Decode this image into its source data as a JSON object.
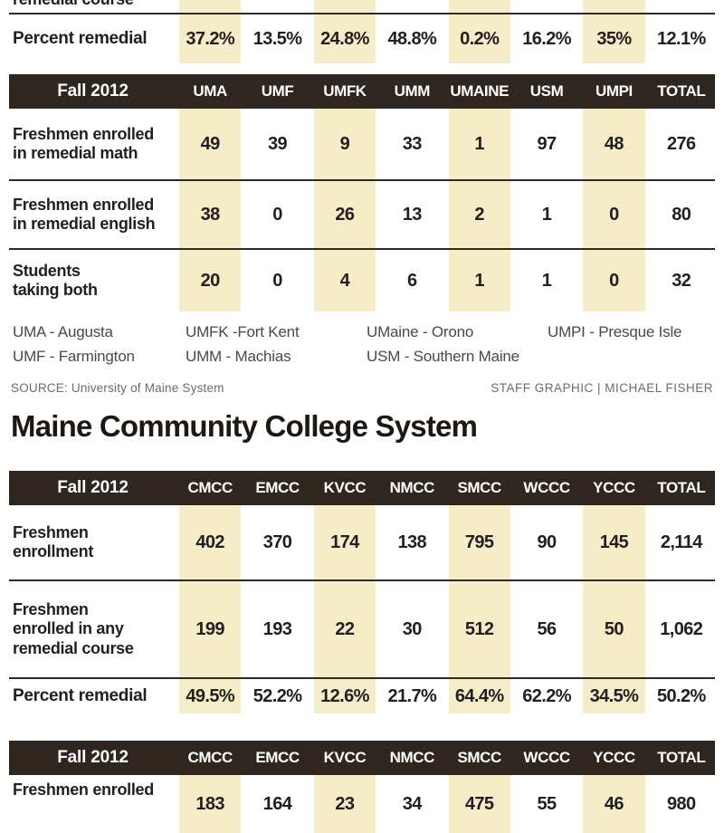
{
  "colors": {
    "page_bg": "#ffffff",
    "header_bg": "#2f2620",
    "header_text": "#ffffff",
    "stripe": "#f5ecc8",
    "rule": "#2e2a26",
    "body_text": "#231f20",
    "muted_text": "#6e6a66",
    "legend_text": "#4c4845"
  },
  "section_title": "Maine Community College System",
  "legend": {
    "col1": "UMA - Augusta\nUMF - Farmington",
    "col2": "UMFK -Fort Kent\nUMM - Machias",
    "col3": "UMaine - Orono\nUSM - Southern Maine",
    "col4": "UMPI - Presque Isle"
  },
  "credits": {
    "source_label": "SOURCE:",
    "source_text": "University of Maine System",
    "staff": "STAFF GRAPHIC | MICHAEL FISHER"
  },
  "chart_data": {
    "type": "table",
    "tables": [
      {
        "name": "university-table-top-clipped",
        "clipped_label_fragment": "remedial course",
        "rows": [
          {
            "label": "Percent remedial",
            "values": [
              "37.2%",
              "13.5%",
              "24.8%",
              "48.8%",
              "0.2%",
              "16.2%",
              "35%",
              "12.1%"
            ]
          }
        ]
      },
      {
        "name": "university-of-maine-system-fall-2012",
        "header": [
          "Fall 2012",
          "UMA",
          "UMF",
          "UMFK",
          "UMM",
          "UMAINE",
          "USM",
          "UMPI",
          "TOTAL"
        ],
        "rows": [
          {
            "label": "Freshmen enrolled\nin remedial math",
            "values": [
              "49",
              "39",
              "9",
              "33",
              "1",
              "97",
              "48",
              "276"
            ]
          },
          {
            "label": "Freshmen enrolled\nin remedial english",
            "values": [
              "38",
              "0",
              "26",
              "13",
              "2",
              "1",
              "0",
              "80"
            ]
          },
          {
            "label": "Students\ntaking both",
            "values": [
              "20",
              "0",
              "4",
              "6",
              "1",
              "1",
              "0",
              "32"
            ]
          }
        ]
      },
      {
        "name": "community-college-fall-2012",
        "header": [
          "Fall 2012",
          "CMCC",
          "EMCC",
          "KVCC",
          "NMCC",
          "SMCC",
          "WCCC",
          "YCCC",
          "TOTAL"
        ],
        "rows": [
          {
            "label": "Freshmen\nenrollment",
            "values": [
              "402",
              "370",
              "174",
              "138",
              "795",
              "90",
              "145",
              "2,114"
            ]
          },
          {
            "label": "Freshmen\nenrolled in any\nremedial course",
            "values": [
              "199",
              "193",
              "22",
              "30",
              "512",
              "56",
              "50",
              "1,062"
            ]
          },
          {
            "label": "Percent remedial",
            "values": [
              "49.5%",
              "52.2%",
              "12.6%",
              "21.7%",
              "64.4%",
              "62.2%",
              "34.5%",
              "50.2%"
            ]
          }
        ]
      },
      {
        "name": "community-college-fall-2012-second-clipped",
        "header": [
          "Fall 2012",
          "CMCC",
          "EMCC",
          "KVCC",
          "NMCC",
          "SMCC",
          "WCCC",
          "YCCC",
          "TOTAL"
        ],
        "rows": [
          {
            "label": "Freshmen enrolled",
            "values": [
              "183",
              "164",
              "23",
              "34",
              "475",
              "55",
              "46",
              "980"
            ]
          }
        ]
      }
    ]
  }
}
